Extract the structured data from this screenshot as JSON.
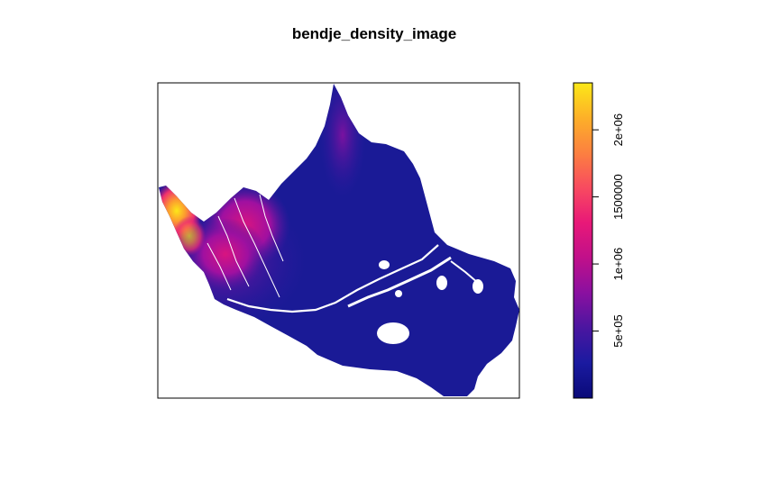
{
  "title": "bendje_density_image",
  "colorbar": {
    "colors": [
      "#0a0a78",
      "#1a1aa0",
      "#4a16a0",
      "#8a10a0",
      "#c0108a",
      "#e81878",
      "#f84a60",
      "#fc8040",
      "#fdb028",
      "#fce818"
    ],
    "ticks": [
      {
        "label": "5e+05",
        "value": 500000
      },
      {
        "label": "1e+06",
        "value": 1000000
      },
      {
        "label": "1500000",
        "value": 1500000
      },
      {
        "label": "2e+06",
        "value": 2000000
      }
    ],
    "range": [
      0,
      2350000
    ]
  },
  "map": {
    "land_base_color": "#1a1a96",
    "river_color": "#ffffff"
  }
}
